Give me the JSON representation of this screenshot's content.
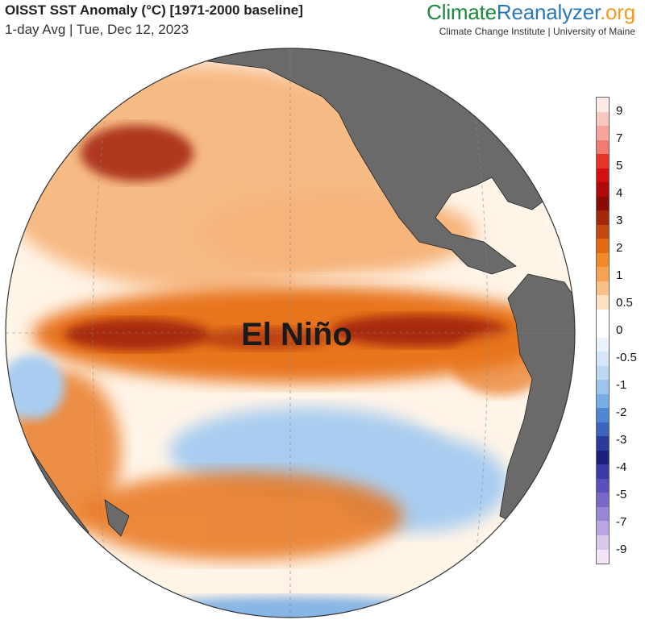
{
  "header": {
    "title": "OISST SST Anomaly (°C) [1971-2000 baseline]",
    "subtitle": "1-day Avg | Tue, Dec 12, 2023"
  },
  "brand": {
    "part1": "Climate",
    "part2": "Reanalyzer",
    "part3": ".org",
    "affiliation": "Climate Change Institute | University of Maine"
  },
  "map": {
    "annotation": "El Niño",
    "projection": "orthographic globe",
    "colors": {
      "land": "#6a6a6a",
      "warm_core": "#a2230e",
      "warm": "#e8751c",
      "warm_light": "#f6b47a",
      "neutral": "#ffffff",
      "cool": "#a9cdf0",
      "cool_mid": "#6aa5e3",
      "cool_deep": "#2f3f9a"
    }
  },
  "colorbar": {
    "labels": [
      "9",
      "7",
      "5",
      "4",
      "3",
      "2",
      "1",
      "0.5",
      "0",
      "-0.5",
      "-1",
      "-2",
      "-3",
      "-4",
      "-5",
      "-7",
      "-9"
    ],
    "colors": [
      "#fde9e6",
      "#f8c8c0",
      "#f7a59b",
      "#f07b70",
      "#e8342a",
      "#d30f0f",
      "#b0090a",
      "#8a0a07",
      "#a1280a",
      "#c24a10",
      "#e36a12",
      "#f28a28",
      "#f6a452",
      "#f9c088",
      "#fde0c2",
      "#ffffff",
      "#ffffff",
      "#eaf3fc",
      "#d4e6f8",
      "#bcd8f3",
      "#9cc5ee",
      "#77aee6",
      "#4f86d4",
      "#3d64bf",
      "#2a3b9b",
      "#1b1f80",
      "#3a3aa8",
      "#5a4fbf",
      "#7a68c9",
      "#9b86d6",
      "#b9a5e2",
      "#d8c8ee",
      "#f3e4f6"
    ]
  }
}
